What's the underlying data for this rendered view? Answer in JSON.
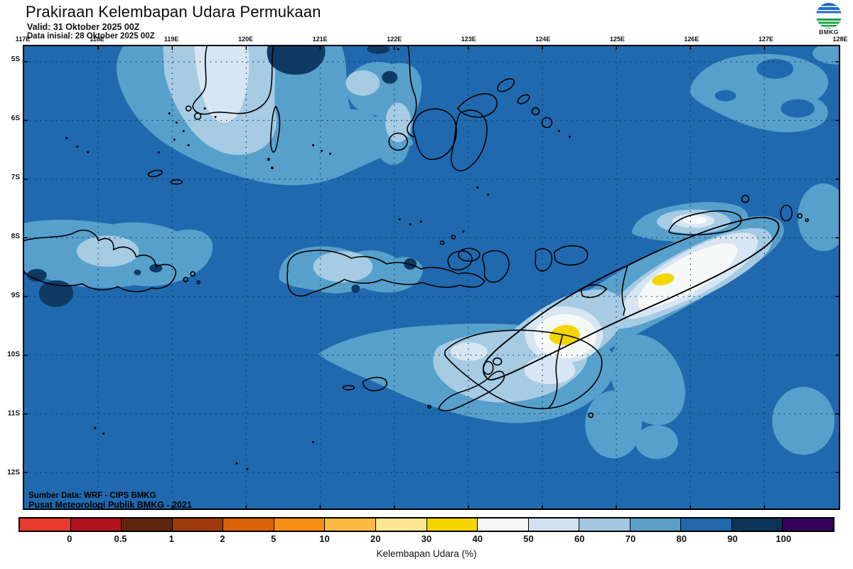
{
  "header": {
    "title": "Prakiraan Kelembapan Udara Permukaan",
    "valid": "Valid: 31 Oktober 2025 00Z",
    "init": "Data inisial: 28 Oktober 2025 00Z"
  },
  "logo": {
    "label": "BMKG"
  },
  "map": {
    "lon_labels": [
      "117E",
      "118E",
      "119E",
      "120E",
      "121E",
      "122E",
      "123E",
      "124E",
      "125E",
      "126E",
      "127E",
      "128E"
    ],
    "lat_labels": [
      "5S",
      "6S",
      "7S",
      "8S",
      "9S",
      "10S",
      "11S",
      "12S"
    ],
    "credit_line1": "Sumber Data: WRF - CIPS BMKG",
    "credit_line2": "Pusat Meteorologi Publik BMKG -  2021"
  },
  "colorbar": {
    "label": "Kelembapan Udara (%)",
    "tick_labels": [
      "0",
      "0.5",
      "1",
      "2",
      "5",
      "10",
      "20",
      "30",
      "40",
      "50",
      "60",
      "70",
      "80",
      "90",
      "100"
    ],
    "segment_colors": [
      "#e63b2e",
      "#b2131f",
      "#5f250f",
      "#9e3a0b",
      "#d96108",
      "#f68e13",
      "#fcba42",
      "#fbe692",
      "#f5d400",
      "#f6f6f6",
      "#d3e1ee",
      "#a3c8e0",
      "#5b9ec6",
      "#2167ac",
      "#0d3456",
      "#330459"
    ]
  },
  "palette": {
    "c80": "#2069ae",
    "c70": "#57a0cb",
    "c60": "#a6cbe3",
    "c50": "#d7e6f2",
    "c40": "#f7f8f8",
    "c30": "#f3d500",
    "c90": "#0e3a63",
    "grid": "#0b355e",
    "coast": "#000000",
    "logo_blue": "#1f6bc9",
    "logo_green": "#21a048"
  }
}
